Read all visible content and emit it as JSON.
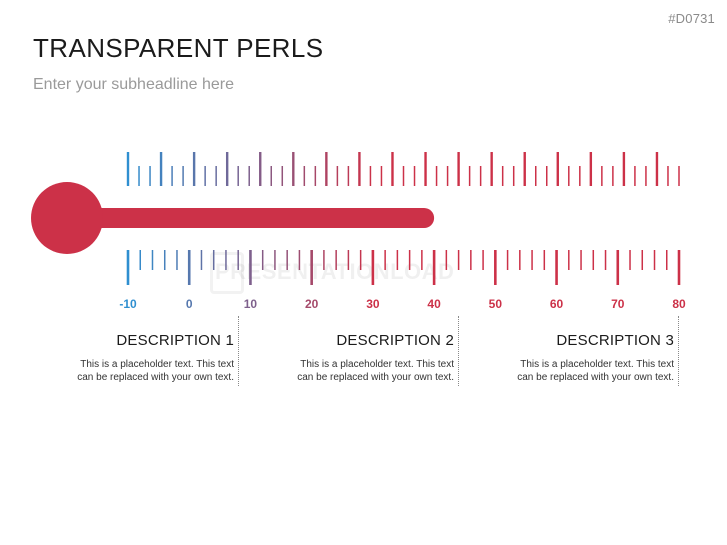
{
  "slide_id": "#D0731",
  "title": "TRANSPARENT PERLS",
  "subtitle": "Enter your subheadline here",
  "watermark": "PRESENTATIONLOAD",
  "thermometer": {
    "scale_min": -10,
    "scale_max": 80,
    "current_value": 40,
    "labels": [
      "-10",
      "0",
      "10",
      "20",
      "30",
      "40",
      "50",
      "60",
      "70",
      "80"
    ],
    "color_cold": "#2f8fd0",
    "color_hot": "#cc3148",
    "bulb_color": "#cc3148"
  },
  "descriptions": [
    {
      "heading": "DESCRIPTION 1",
      "text_line1": "This is a placeholder text. This text",
      "text_line2": "can be replaced with your own text."
    },
    {
      "heading": "DESCRIPTION 2",
      "text_line1": "This is a placeholder text. This text",
      "text_line2": "can be replaced with your own text."
    },
    {
      "heading": "DESCRIPTION 3",
      "text_line1": "This is a placeholder text. This text",
      "text_line2": "can be replaced with your own text."
    }
  ]
}
